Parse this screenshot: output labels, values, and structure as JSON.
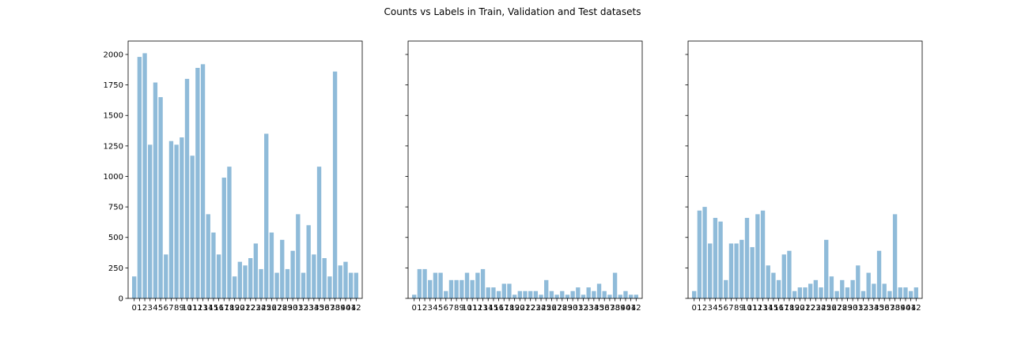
{
  "figure": {
    "suptitle": "Counts vs Labels in Train, Validation and Test datasets"
  },
  "chart_data": [
    {
      "type": "bar",
      "title": "",
      "xlabel": "",
      "ylabel": "",
      "categories": [
        "0",
        "1",
        "2",
        "3",
        "4",
        "5",
        "6",
        "7",
        "8",
        "9",
        "10",
        "11",
        "12",
        "13",
        "14",
        "15",
        "16",
        "17",
        "18",
        "19",
        "20",
        "21",
        "22",
        "23",
        "24",
        "25",
        "26",
        "27",
        "28",
        "29",
        "30",
        "31",
        "32",
        "33",
        "34",
        "35",
        "36",
        "37",
        "38",
        "39",
        "40",
        "41",
        "42"
      ],
      "values": [
        180,
        1980,
        2010,
        1260,
        1770,
        1650,
        360,
        1290,
        1260,
        1320,
        1800,
        1170,
        1890,
        1920,
        690,
        540,
        360,
        990,
        1080,
        180,
        300,
        270,
        330,
        450,
        240,
        1350,
        540,
        210,
        480,
        240,
        390,
        690,
        210,
        600,
        360,
        1080,
        330,
        180,
        1860,
        270,
        300,
        210,
        210
      ],
      "ylim": [
        0,
        2110
      ],
      "yticks": [
        "0",
        "250",
        "500",
        "750",
        "1000",
        "1250",
        "1500",
        "1750",
        "2000"
      ],
      "grid": false,
      "color": "#1f77b4"
    },
    {
      "type": "bar",
      "title": "",
      "xlabel": "",
      "ylabel": "",
      "categories": [
        "0",
        "1",
        "2",
        "3",
        "4",
        "5",
        "6",
        "7",
        "8",
        "9",
        "10",
        "11",
        "12",
        "13",
        "14",
        "15",
        "16",
        "17",
        "18",
        "19",
        "20",
        "21",
        "22",
        "23",
        "24",
        "25",
        "26",
        "27",
        "28",
        "29",
        "30",
        "31",
        "32",
        "33",
        "34",
        "35",
        "36",
        "37",
        "38",
        "39",
        "40",
        "41",
        "42"
      ],
      "values": [
        30,
        240,
        240,
        150,
        210,
        210,
        60,
        150,
        150,
        150,
        210,
        150,
        210,
        240,
        90,
        90,
        60,
        120,
        120,
        30,
        60,
        60,
        60,
        60,
        30,
        150,
        60,
        30,
        60,
        30,
        60,
        90,
        30,
        90,
        60,
        120,
        60,
        30,
        210,
        30,
        60,
        30,
        30
      ],
      "ylim": [
        0,
        2110
      ],
      "yticks": [
        "0",
        "250",
        "500",
        "750",
        "1000",
        "1250",
        "1500",
        "1750",
        "2000"
      ],
      "grid": false,
      "color": "#1f77b4"
    },
    {
      "type": "bar",
      "title": "",
      "xlabel": "",
      "ylabel": "",
      "categories": [
        "0",
        "1",
        "2",
        "3",
        "4",
        "5",
        "6",
        "7",
        "8",
        "9",
        "10",
        "11",
        "12",
        "13",
        "14",
        "15",
        "16",
        "17",
        "18",
        "19",
        "20",
        "21",
        "22",
        "23",
        "24",
        "25",
        "26",
        "27",
        "28",
        "29",
        "30",
        "31",
        "32",
        "33",
        "34",
        "35",
        "36",
        "37",
        "38",
        "39",
        "40",
        "41",
        "42"
      ],
      "values": [
        60,
        720,
        750,
        450,
        660,
        630,
        150,
        450,
        450,
        480,
        660,
        420,
        690,
        720,
        270,
        210,
        150,
        360,
        390,
        60,
        90,
        90,
        120,
        150,
        90,
        480,
        180,
        60,
        150,
        90,
        150,
        270,
        60,
        210,
        120,
        390,
        120,
        60,
        690,
        90,
        90,
        60,
        90
      ],
      "ylim": [
        0,
        2110
      ],
      "yticks": [
        "0",
        "250",
        "500",
        "750",
        "1000",
        "1250",
        "1500",
        "1750",
        "2000"
      ],
      "grid": false,
      "color": "#1f77b4"
    }
  ]
}
